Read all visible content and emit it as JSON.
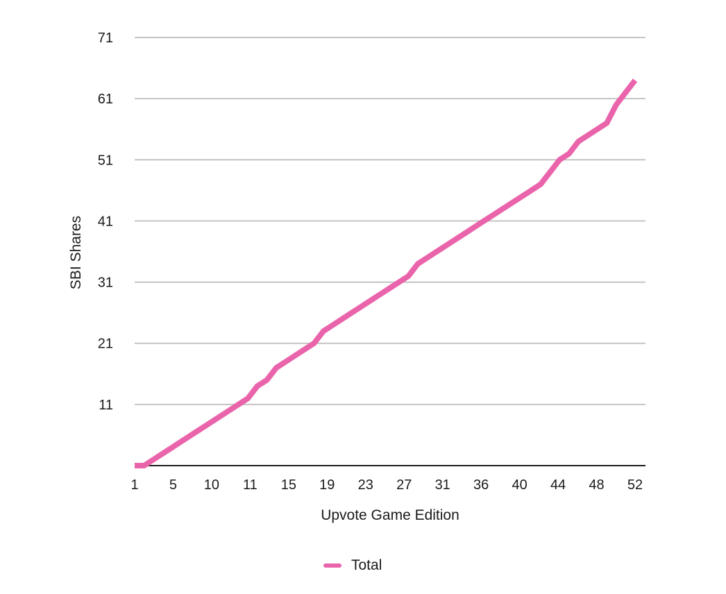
{
  "chart_data": {
    "type": "line",
    "xlabel": "Upvote Game Edition",
    "ylabel": "SBI Shares",
    "x_tick_labels": [
      "1",
      "5",
      "10",
      "11",
      "15",
      "19",
      "23",
      "27",
      "31",
      "36",
      "40",
      "44",
      "48",
      "52"
    ],
    "y_ticks": [
      11,
      21,
      31,
      41,
      51,
      61,
      71
    ],
    "ylim": [
      1,
      71
    ],
    "grid": "horizontal",
    "legend_position": "bottom-center",
    "series": [
      {
        "name": "Total",
        "color": "#ea64ab",
        "values": [
          1,
          1,
          2,
          3,
          4,
          5,
          6,
          7,
          8,
          9,
          10,
          11,
          12,
          14,
          15,
          17,
          18,
          19,
          20,
          21,
          23,
          24,
          25,
          26,
          27,
          28,
          29,
          30,
          31,
          32,
          34,
          35,
          36,
          37,
          38,
          39,
          40,
          41,
          42,
          43,
          44,
          45,
          46,
          47,
          49,
          51,
          52,
          54,
          55,
          56,
          57,
          60,
          62,
          64
        ]
      }
    ]
  }
}
